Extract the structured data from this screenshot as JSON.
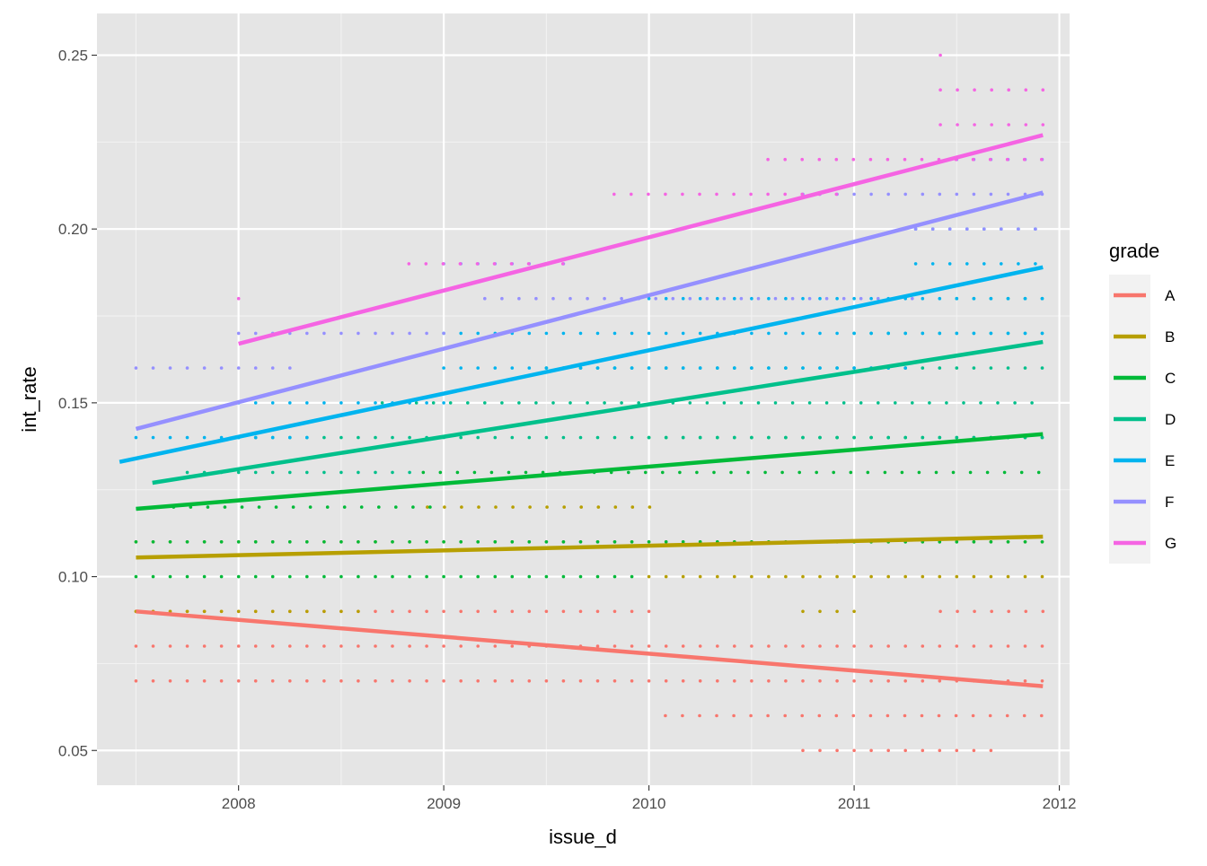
{
  "chart_data": {
    "type": "scatter",
    "xlabel": "issue_d",
    "ylabel": "int_rate",
    "xlim": [
      2007.31,
      2012.05
    ],
    "ylim": [
      0.04,
      0.262
    ],
    "xticks": [
      2008,
      2009,
      2010,
      2011,
      2012
    ],
    "xtick_labels": [
      "2008",
      "2009",
      "2010",
      "2011",
      "2012"
    ],
    "yticks": [
      0.05,
      0.1,
      0.15,
      0.2,
      0.25
    ],
    "ytick_labels": [
      "0.05",
      "0.10",
      "0.15",
      "0.20",
      "0.25"
    ],
    "grid": true,
    "background": "#E5E5E5",
    "legend": {
      "title": "grade",
      "placement": "right"
    },
    "series": [
      {
        "name": "A",
        "color": "#F8766D",
        "trend": {
          "x": [
            2007.5,
            2011.92
          ],
          "y": [
            0.09,
            0.0685
          ]
        },
        "point_bands": [
          {
            "y": 0.09,
            "x_start": 2007.5,
            "x_end": 2010.0
          },
          {
            "y": 0.08,
            "x_start": 2007.5,
            "x_end": 2011.92
          },
          {
            "y": 0.07,
            "x_start": 2007.5,
            "x_end": 2011.92
          },
          {
            "y": 0.06,
            "x_start": 2010.08,
            "x_end": 2011.92
          },
          {
            "y": 0.05,
            "x_start": 2010.75,
            "x_end": 2011.67
          },
          {
            "y": 0.09,
            "x_start": 2011.42,
            "x_end": 2011.92
          }
        ]
      },
      {
        "name": "B",
        "color": "#B79F00",
        "trend": {
          "x": [
            2007.5,
            2011.92
          ],
          "y": [
            0.1055,
            0.1115
          ]
        },
        "point_bands": [
          {
            "y": 0.1,
            "x_start": 2010.0,
            "x_end": 2011.92
          },
          {
            "y": 0.11,
            "x_start": 2007.5,
            "x_end": 2011.92
          },
          {
            "y": 0.12,
            "x_start": 2008.92,
            "x_end": 2010.08
          },
          {
            "y": 0.09,
            "x_start": 2010.75,
            "x_end": 2011.0
          },
          {
            "y": 0.09,
            "x_start": 2007.5,
            "x_end": 2008.6
          }
        ]
      },
      {
        "name": "C",
        "color": "#00BA38",
        "trend": {
          "x": [
            2007.5,
            2011.92
          ],
          "y": [
            0.1195,
            0.141
          ]
        },
        "point_bands": [
          {
            "y": 0.1,
            "x_start": 2007.5,
            "x_end": 2009.92
          },
          {
            "y": 0.11,
            "x_start": 2007.5,
            "x_end": 2011.92
          },
          {
            "y": 0.12,
            "x_start": 2007.6,
            "x_end": 2009.0
          },
          {
            "y": 0.13,
            "x_start": 2008.9,
            "x_end": 2011.92
          },
          {
            "y": 0.14,
            "x_start": 2010.0,
            "x_end": 2011.92
          }
        ]
      },
      {
        "name": "D",
        "color": "#00C08B",
        "trend": {
          "x": [
            2007.58,
            2011.92
          ],
          "y": [
            0.127,
            0.1675
          ]
        },
        "point_bands": [
          {
            "y": 0.13,
            "x_start": 2007.75,
            "x_end": 2008.9
          },
          {
            "y": 0.14,
            "x_start": 2008.0,
            "x_end": 2011.92
          },
          {
            "y": 0.15,
            "x_start": 2008.7,
            "x_end": 2011.92
          },
          {
            "y": 0.16,
            "x_start": 2009.5,
            "x_end": 2011.92
          },
          {
            "y": 0.17,
            "x_start": 2011.0,
            "x_end": 2011.92
          },
          {
            "y": 0.18,
            "x_start": 2011.5,
            "x_end": 2011.92
          }
        ]
      },
      {
        "name": "E",
        "color": "#00B4EF",
        "trend": {
          "x": [
            2007.42,
            2011.92
          ],
          "y": [
            0.133,
            0.189
          ]
        },
        "point_bands": [
          {
            "y": 0.14,
            "x_start": 2007.5,
            "x_end": 2008.4
          },
          {
            "y": 0.15,
            "x_start": 2008.0,
            "x_end": 2009.0
          },
          {
            "y": 0.16,
            "x_start": 2009.0,
            "x_end": 2011.3
          },
          {
            "y": 0.17,
            "x_start": 2009.0,
            "x_end": 2011.92
          },
          {
            "y": 0.18,
            "x_start": 2010.0,
            "x_end": 2011.92
          },
          {
            "y": 0.19,
            "x_start": 2011.3,
            "x_end": 2011.92
          },
          {
            "y": 0.2,
            "x_start": 2011.3,
            "x_end": 2011.92
          }
        ]
      },
      {
        "name": "F",
        "color": "#9590FF",
        "trend": {
          "x": [
            2007.5,
            2011.92
          ],
          "y": [
            0.1425,
            0.2105
          ]
        },
        "point_bands": [
          {
            "y": 0.16,
            "x_start": 2007.5,
            "x_end": 2008.25
          },
          {
            "y": 0.17,
            "x_start": 2008.0,
            "x_end": 2009.0
          },
          {
            "y": 0.18,
            "x_start": 2009.2,
            "x_end": 2011.3
          },
          {
            "y": 0.19,
            "x_start": 2009.0,
            "x_end": 2009.6
          },
          {
            "y": 0.2,
            "x_start": 2011.3,
            "x_end": 2011.92
          },
          {
            "y": 0.21,
            "x_start": 2010.75,
            "x_end": 2011.92
          },
          {
            "y": 0.22,
            "x_start": 2011.5,
            "x_end": 2011.92
          }
        ]
      },
      {
        "name": "G",
        "color": "#F564E3",
        "trend": {
          "x": [
            2008.0,
            2011.92
          ],
          "y": [
            0.167,
            0.227
          ]
        },
        "point_bands": [
          {
            "y": 0.18,
            "x_start": 2008.0,
            "x_end": 2008.0
          },
          {
            "y": 0.19,
            "x_start": 2008.83,
            "x_end": 2009.6
          },
          {
            "y": 0.21,
            "x_start": 2009.83,
            "x_end": 2010.92
          },
          {
            "y": 0.22,
            "x_start": 2010.58,
            "x_end": 2011.92
          },
          {
            "y": 0.23,
            "x_start": 2011.42,
            "x_end": 2011.92
          },
          {
            "y": 0.24,
            "x_start": 2011.42,
            "x_end": 2011.92
          },
          {
            "y": 0.25,
            "x_start": 2011.42,
            "x_end": 2011.42
          }
        ]
      }
    ]
  }
}
